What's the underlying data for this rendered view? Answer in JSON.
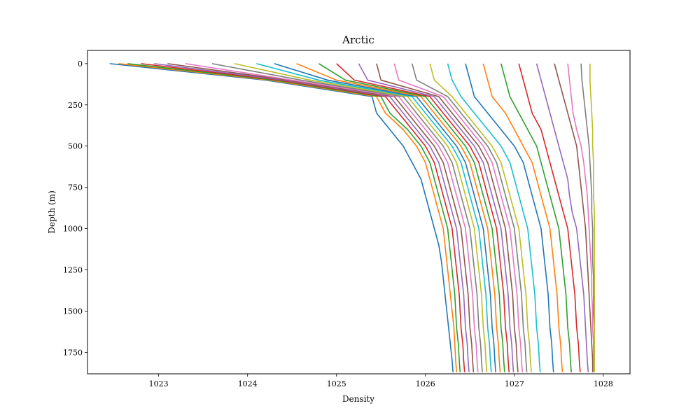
{
  "chart_data": {
    "type": "line",
    "title": "Arctic",
    "xlabel": "Density",
    "ylabel": "Depth (m)",
    "xlim": [
      1022.2,
      1028.3
    ],
    "ylim": [
      1880,
      -80
    ],
    "y_inverted": true,
    "grid": false,
    "xticks": [
      1023,
      1024,
      1025,
      1026,
      1027,
      1028
    ],
    "yticks": [
      0,
      250,
      500,
      750,
      1000,
      1250,
      1500,
      1750
    ],
    "colors": [
      "#1f77b4",
      "#ff7f0e",
      "#2ca02c",
      "#d62728",
      "#9467bd",
      "#8c564b",
      "#e377c2",
      "#7f7f7f",
      "#bcbd22",
      "#17becf"
    ],
    "depths": [
      0,
      100,
      200,
      300,
      400,
      500,
      600,
      700,
      800,
      900,
      1000,
      1100,
      1200,
      1300,
      1400,
      1500,
      1600,
      1700,
      1800,
      1870
    ],
    "series": [
      {
        "values": [
          1022.45,
          1024.2,
          1025.4,
          1025.45,
          1025.6,
          1025.75,
          1025.85,
          1025.95,
          1026.0,
          1026.05,
          1026.1,
          1026.15,
          1026.18,
          1026.2,
          1026.22,
          1026.24,
          1026.26,
          1026.28,
          1026.3,
          1026.31
        ]
      },
      {
        "values": [
          1022.55,
          1024.25,
          1025.45,
          1025.55,
          1025.75,
          1025.9,
          1026.0,
          1026.05,
          1026.1,
          1026.15,
          1026.2,
          1026.22,
          1026.24,
          1026.26,
          1026.28,
          1026.3,
          1026.32,
          1026.33,
          1026.34,
          1026.35
        ]
      },
      {
        "values": [
          1022.65,
          1024.3,
          1025.5,
          1025.6,
          1025.8,
          1025.95,
          1026.05,
          1026.1,
          1026.15,
          1026.2,
          1026.25,
          1026.27,
          1026.29,
          1026.31,
          1026.33,
          1026.34,
          1026.35,
          1026.37,
          1026.38,
          1026.39
        ]
      },
      {
        "values": [
          1022.8,
          1024.35,
          1025.55,
          1025.7,
          1025.85,
          1026.0,
          1026.1,
          1026.15,
          1026.2,
          1026.25,
          1026.3,
          1026.32,
          1026.34,
          1026.36,
          1026.38,
          1026.39,
          1026.4,
          1026.42,
          1026.43,
          1026.44
        ]
      },
      {
        "values": [
          1022.95,
          1024.4,
          1025.6,
          1025.75,
          1025.9,
          1026.05,
          1026.15,
          1026.2,
          1026.25,
          1026.3,
          1026.35,
          1026.37,
          1026.39,
          1026.41,
          1026.43,
          1026.44,
          1026.45,
          1026.47,
          1026.48,
          1026.49
        ]
      },
      {
        "values": [
          1023.1,
          1024.45,
          1025.65,
          1025.8,
          1025.95,
          1026.1,
          1026.2,
          1026.25,
          1026.3,
          1026.35,
          1026.4,
          1026.42,
          1026.44,
          1026.46,
          1026.48,
          1026.49,
          1026.5,
          1026.52,
          1026.53,
          1026.54
        ]
      },
      {
        "values": [
          1023.3,
          1024.5,
          1025.7,
          1025.85,
          1026.0,
          1026.15,
          1026.25,
          1026.3,
          1026.35,
          1026.4,
          1026.45,
          1026.47,
          1026.49,
          1026.51,
          1026.53,
          1026.54,
          1026.55,
          1026.57,
          1026.58,
          1026.59
        ]
      },
      {
        "values": [
          1023.6,
          1024.6,
          1025.75,
          1025.9,
          1026.05,
          1026.2,
          1026.3,
          1026.35,
          1026.4,
          1026.45,
          1026.5,
          1026.52,
          1026.54,
          1026.56,
          1026.58,
          1026.59,
          1026.6,
          1026.62,
          1026.63,
          1026.64
        ]
      },
      {
        "values": [
          1023.85,
          1024.7,
          1025.8,
          1025.95,
          1026.1,
          1026.25,
          1026.35,
          1026.4,
          1026.45,
          1026.5,
          1026.55,
          1026.57,
          1026.59,
          1026.61,
          1026.63,
          1026.64,
          1026.65,
          1026.67,
          1026.68,
          1026.69
        ]
      },
      {
        "values": [
          1024.1,
          1024.8,
          1025.85,
          1026.0,
          1026.15,
          1026.3,
          1026.4,
          1026.45,
          1026.5,
          1026.55,
          1026.6,
          1026.62,
          1026.64,
          1026.66,
          1026.68,
          1026.69,
          1026.7,
          1026.72,
          1026.73,
          1026.74
        ]
      },
      {
        "values": [
          1024.3,
          1024.9,
          1025.9,
          1026.05,
          1026.2,
          1026.35,
          1026.45,
          1026.5,
          1026.55,
          1026.6,
          1026.65,
          1026.67,
          1026.69,
          1026.71,
          1026.73,
          1026.74,
          1026.75,
          1026.77,
          1026.78,
          1026.79
        ]
      },
      {
        "values": [
          1024.55,
          1025.0,
          1025.95,
          1026.1,
          1026.25,
          1026.4,
          1026.5,
          1026.55,
          1026.6,
          1026.65,
          1026.7,
          1026.72,
          1026.74,
          1026.76,
          1026.78,
          1026.79,
          1026.8,
          1026.82,
          1026.83,
          1026.84
        ]
      },
      {
        "values": [
          1024.8,
          1025.1,
          1026.0,
          1026.15,
          1026.3,
          1026.45,
          1026.55,
          1026.6,
          1026.65,
          1026.7,
          1026.75,
          1026.77,
          1026.79,
          1026.81,
          1026.83,
          1026.84,
          1026.85,
          1026.87,
          1026.88,
          1026.89
        ]
      },
      {
        "values": [
          1025.0,
          1025.2,
          1026.05,
          1026.2,
          1026.35,
          1026.5,
          1026.6,
          1026.65,
          1026.7,
          1026.75,
          1026.8,
          1026.82,
          1026.84,
          1026.86,
          1026.88,
          1026.89,
          1026.9,
          1026.92,
          1026.93,
          1026.94
        ]
      },
      {
        "values": [
          1025.25,
          1025.35,
          1026.1,
          1026.25,
          1026.4,
          1026.55,
          1026.65,
          1026.7,
          1026.75,
          1026.8,
          1026.85,
          1026.87,
          1026.89,
          1026.91,
          1026.93,
          1026.94,
          1026.95,
          1026.97,
          1026.98,
          1026.99
        ]
      },
      {
        "values": [
          1025.45,
          1025.5,
          1026.15,
          1026.3,
          1026.45,
          1026.6,
          1026.7,
          1026.75,
          1026.8,
          1026.85,
          1026.9,
          1026.92,
          1026.94,
          1026.96,
          1026.98,
          1026.99,
          1027.0,
          1027.02,
          1027.03,
          1027.04
        ]
      },
      {
        "values": [
          1025.65,
          1025.7,
          1026.2,
          1026.35,
          1026.5,
          1026.65,
          1026.75,
          1026.8,
          1026.85,
          1026.9,
          1026.95,
          1026.97,
          1026.99,
          1027.01,
          1027.03,
          1027.04,
          1027.05,
          1027.07,
          1027.08,
          1027.09
        ]
      },
      {
        "values": [
          1025.85,
          1025.9,
          1026.25,
          1026.4,
          1026.55,
          1026.7,
          1026.8,
          1026.85,
          1026.9,
          1026.95,
          1027.0,
          1027.02,
          1027.04,
          1027.06,
          1027.08,
          1027.09,
          1027.1,
          1027.12,
          1027.13,
          1027.14
        ]
      },
      {
        "values": [
          1026.05,
          1026.1,
          1026.3,
          1026.45,
          1026.6,
          1026.75,
          1026.85,
          1026.9,
          1026.95,
          1027.0,
          1027.05,
          1027.07,
          1027.09,
          1027.11,
          1027.13,
          1027.14,
          1027.15,
          1027.17,
          1027.18,
          1027.19
        ]
      },
      {
        "values": [
          1026.25,
          1026.3,
          1026.4,
          1026.55,
          1026.7,
          1026.85,
          1026.95,
          1027.0,
          1027.05,
          1027.1,
          1027.15,
          1027.17,
          1027.19,
          1027.21,
          1027.23,
          1027.24,
          1027.25,
          1027.27,
          1027.28,
          1027.29
        ]
      },
      {
        "values": [
          1026.45,
          1026.5,
          1026.55,
          1026.7,
          1026.85,
          1027.0,
          1027.1,
          1027.15,
          1027.2,
          1027.25,
          1027.3,
          1027.32,
          1027.34,
          1027.36,
          1027.38,
          1027.39,
          1027.4,
          1027.42,
          1027.43,
          1027.44
        ]
      },
      {
        "values": [
          1026.65,
          1026.7,
          1026.75,
          1026.9,
          1027.0,
          1027.1,
          1027.2,
          1027.25,
          1027.3,
          1027.35,
          1027.4,
          1027.42,
          1027.44,
          1027.46,
          1027.48,
          1027.49,
          1027.5,
          1027.52,
          1027.53,
          1027.54
        ]
      },
      {
        "values": [
          1026.85,
          1026.9,
          1026.95,
          1027.05,
          1027.15,
          1027.25,
          1027.3,
          1027.35,
          1027.4,
          1027.45,
          1027.5,
          1027.52,
          1027.54,
          1027.56,
          1027.58,
          1027.59,
          1027.6,
          1027.62,
          1027.63,
          1027.64
        ]
      },
      {
        "values": [
          1027.05,
          1027.1,
          1027.15,
          1027.2,
          1027.3,
          1027.35,
          1027.4,
          1027.45,
          1027.5,
          1027.55,
          1027.6,
          1027.62,
          1027.64,
          1027.66,
          1027.68,
          1027.69,
          1027.7,
          1027.72,
          1027.73,
          1027.74
        ]
      },
      {
        "values": [
          1027.25,
          1027.3,
          1027.35,
          1027.4,
          1027.45,
          1027.5,
          1027.55,
          1027.6,
          1027.62,
          1027.65,
          1027.7,
          1027.72,
          1027.74,
          1027.76,
          1027.78,
          1027.79,
          1027.8,
          1027.81,
          1027.82,
          1027.83
        ]
      },
      {
        "values": [
          1027.45,
          1027.5,
          1027.55,
          1027.6,
          1027.65,
          1027.7,
          1027.72,
          1027.74,
          1027.76,
          1027.78,
          1027.8,
          1027.81,
          1027.82,
          1027.83,
          1027.84,
          1027.85,
          1027.86,
          1027.87,
          1027.88,
          1027.88
        ]
      },
      {
        "values": [
          1027.6,
          1027.62,
          1027.64,
          1027.66,
          1027.7,
          1027.75,
          1027.78,
          1027.8,
          1027.82,
          1027.83,
          1027.84,
          1027.85,
          1027.86,
          1027.87,
          1027.87,
          1027.88,
          1027.88,
          1027.89,
          1027.89,
          1027.89
        ]
      },
      {
        "values": [
          1027.75,
          1027.76,
          1027.78,
          1027.8,
          1027.82,
          1027.84,
          1027.85,
          1027.86,
          1027.87,
          1027.87,
          1027.88,
          1027.88,
          1027.88,
          1027.89,
          1027.89,
          1027.89,
          1027.9,
          1027.9,
          1027.9,
          1027.9
        ]
      },
      {
        "values": [
          1027.85,
          1027.85,
          1027.86,
          1027.87,
          1027.88,
          1027.88,
          1027.89,
          1027.89,
          1027.89,
          1027.9,
          1027.9,
          1027.9,
          1027.9,
          1027.9,
          1027.9,
          1027.9,
          1027.9,
          1027.9,
          1027.9,
          1027.9
        ]
      }
    ]
  }
}
